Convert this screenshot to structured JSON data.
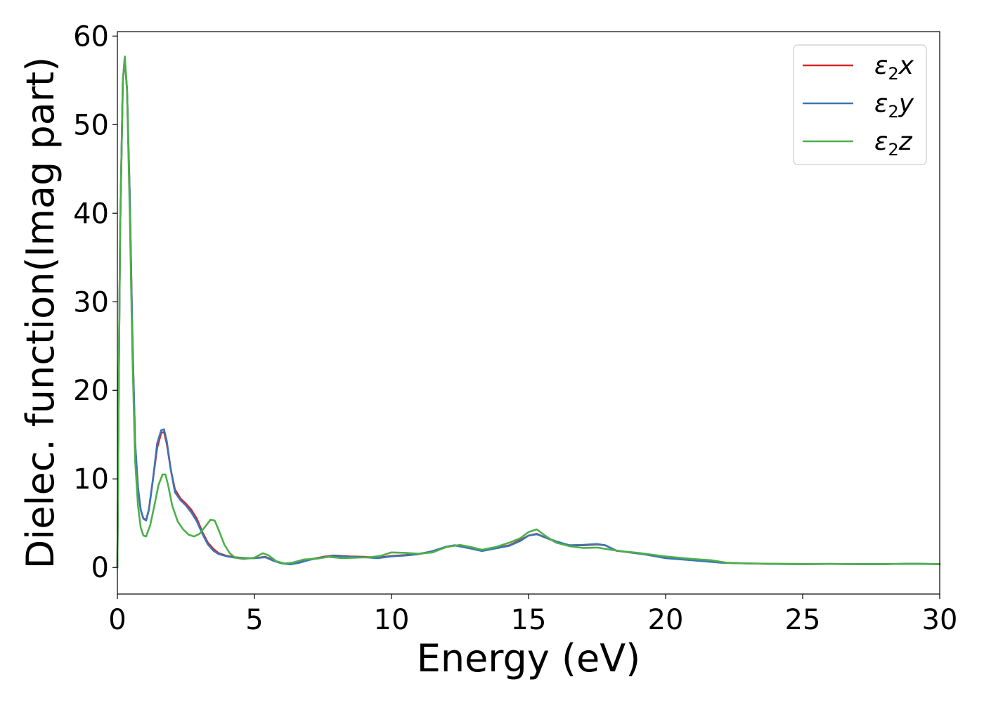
{
  "chart_data": {
    "type": "line",
    "title": "",
    "xlabel": "Energy (eV)",
    "ylabel": "Dielec. function(Imag part)",
    "xlim": [
      0,
      30
    ],
    "ylim": [
      -3,
      60.5
    ],
    "x_ticks": [
      0,
      5,
      10,
      15,
      20,
      25,
      30
    ],
    "y_ticks": [
      0,
      10,
      20,
      30,
      40,
      50,
      60
    ],
    "x_tick_labels": [
      "0",
      "5",
      "10",
      "15",
      "20",
      "25",
      "30"
    ],
    "y_tick_labels": [
      "0",
      "10",
      "20",
      "30",
      "40",
      "50",
      "60"
    ],
    "grid": false,
    "legend_position": "top-right",
    "legend": [
      {
        "base": "ε",
        "sub": "2",
        "axis": "x"
      },
      {
        "base": "ε",
        "sub": "2",
        "axis": "y"
      },
      {
        "base": "ε",
        "sub": "2",
        "axis": "z"
      }
    ],
    "series": [
      {
        "name": "ε2x",
        "color": "#d62728",
        "points": [
          [
            0,
            0
          ],
          [
            0.05,
            20
          ],
          [
            0.1,
            38
          ],
          [
            0.2,
            55
          ],
          [
            0.27,
            57.3
          ],
          [
            0.35,
            54
          ],
          [
            0.45,
            42
          ],
          [
            0.55,
            26
          ],
          [
            0.65,
            14
          ],
          [
            0.75,
            9
          ],
          [
            0.85,
            6.5
          ],
          [
            0.95,
            5.5
          ],
          [
            1.05,
            5.4
          ],
          [
            1.15,
            6.5
          ],
          [
            1.3,
            10
          ],
          [
            1.45,
            13.5
          ],
          [
            1.6,
            15.2
          ],
          [
            1.7,
            15.3
          ],
          [
            1.8,
            14
          ],
          [
            1.95,
            11
          ],
          [
            2.1,
            8.8
          ],
          [
            2.3,
            7.8
          ],
          [
            2.5,
            7.2
          ],
          [
            2.7,
            6.5
          ],
          [
            2.9,
            5.5
          ],
          [
            3.1,
            4
          ],
          [
            3.3,
            2.8
          ],
          [
            3.5,
            2.1
          ],
          [
            3.7,
            1.6
          ],
          [
            4.0,
            1.3
          ],
          [
            4.3,
            1.15
          ],
          [
            4.7,
            1.05
          ],
          [
            5.0,
            1.05
          ],
          [
            5.4,
            1.2
          ],
          [
            5.7,
            0.8
          ],
          [
            6.0,
            0.5
          ],
          [
            6.3,
            0.4
          ],
          [
            6.6,
            0.55
          ],
          [
            7.0,
            0.9
          ],
          [
            7.5,
            1.2
          ],
          [
            7.9,
            1.35
          ],
          [
            8.5,
            1.25
          ],
          [
            9.0,
            1.2
          ],
          [
            9.5,
            1.1
          ],
          [
            10.0,
            1.3
          ],
          [
            10.5,
            1.4
          ],
          [
            11.0,
            1.55
          ],
          [
            11.5,
            1.8
          ],
          [
            12.0,
            2.3
          ],
          [
            12.3,
            2.5
          ],
          [
            12.8,
            2.2
          ],
          [
            13.3,
            1.9
          ],
          [
            13.8,
            2.2
          ],
          [
            14.3,
            2.5
          ],
          [
            14.7,
            3.1
          ],
          [
            15.0,
            3.6
          ],
          [
            15.3,
            3.8
          ],
          [
            15.6,
            3.4
          ],
          [
            16.0,
            2.9
          ],
          [
            16.5,
            2.5
          ],
          [
            17.0,
            2.5
          ],
          [
            17.5,
            2.6
          ],
          [
            17.8,
            2.5
          ],
          [
            18.2,
            1.9
          ],
          [
            18.7,
            1.7
          ],
          [
            19.2,
            1.5
          ],
          [
            20.0,
            1.1
          ],
          [
            21.0,
            0.85
          ],
          [
            22.0,
            0.55
          ],
          [
            23.0,
            0.45
          ],
          [
            24.0,
            0.4
          ],
          [
            25.0,
            0.38
          ],
          [
            26.0,
            0.4
          ],
          [
            27.0,
            0.37
          ],
          [
            28.0,
            0.38
          ],
          [
            29.0,
            0.42
          ],
          [
            30.0,
            0.38
          ]
        ]
      },
      {
        "name": "ε2y",
        "color": "#3a76b5",
        "points": [
          [
            0,
            0
          ],
          [
            0.05,
            20
          ],
          [
            0.1,
            38
          ],
          [
            0.2,
            55
          ],
          [
            0.27,
            57.5
          ],
          [
            0.35,
            54
          ],
          [
            0.45,
            42
          ],
          [
            0.55,
            26
          ],
          [
            0.65,
            14
          ],
          [
            0.75,
            9
          ],
          [
            0.85,
            6.5
          ],
          [
            0.95,
            5.5
          ],
          [
            1.05,
            5.3
          ],
          [
            1.15,
            6.5
          ],
          [
            1.3,
            10
          ],
          [
            1.45,
            14
          ],
          [
            1.6,
            15.5
          ],
          [
            1.7,
            15.6
          ],
          [
            1.8,
            14.3
          ],
          [
            1.95,
            11
          ],
          [
            2.1,
            8.5
          ],
          [
            2.3,
            7.6
          ],
          [
            2.5,
            7.0
          ],
          [
            2.7,
            6.2
          ],
          [
            2.9,
            5.2
          ],
          [
            3.1,
            3.8
          ],
          [
            3.3,
            2.6
          ],
          [
            3.5,
            1.9
          ],
          [
            3.7,
            1.5
          ],
          [
            4.0,
            1.25
          ],
          [
            4.3,
            1.1
          ],
          [
            4.7,
            1.05
          ],
          [
            5.0,
            1.05
          ],
          [
            5.4,
            1.15
          ],
          [
            5.7,
            0.75
          ],
          [
            6.0,
            0.45
          ],
          [
            6.3,
            0.35
          ],
          [
            6.6,
            0.5
          ],
          [
            7.0,
            0.85
          ],
          [
            7.5,
            1.15
          ],
          [
            7.9,
            1.3
          ],
          [
            8.5,
            1.2
          ],
          [
            9.0,
            1.15
          ],
          [
            9.5,
            1.05
          ],
          [
            10.0,
            1.25
          ],
          [
            10.5,
            1.35
          ],
          [
            11.0,
            1.5
          ],
          [
            11.5,
            1.85
          ],
          [
            12.0,
            2.35
          ],
          [
            12.3,
            2.5
          ],
          [
            12.8,
            2.2
          ],
          [
            13.3,
            1.85
          ],
          [
            13.8,
            2.15
          ],
          [
            14.3,
            2.45
          ],
          [
            14.7,
            3.0
          ],
          [
            15.0,
            3.6
          ],
          [
            15.3,
            3.75
          ],
          [
            15.6,
            3.4
          ],
          [
            16.0,
            2.95
          ],
          [
            16.5,
            2.5
          ],
          [
            17.0,
            2.55
          ],
          [
            17.5,
            2.65
          ],
          [
            17.8,
            2.5
          ],
          [
            18.2,
            1.9
          ],
          [
            18.7,
            1.7
          ],
          [
            19.2,
            1.5
          ],
          [
            20.0,
            1.05
          ],
          [
            21.0,
            0.8
          ],
          [
            22.0,
            0.55
          ],
          [
            23.0,
            0.45
          ],
          [
            24.0,
            0.4
          ],
          [
            25.0,
            0.38
          ],
          [
            26.0,
            0.4
          ],
          [
            27.0,
            0.37
          ],
          [
            28.0,
            0.38
          ],
          [
            29.0,
            0.42
          ],
          [
            30.0,
            0.38
          ]
        ]
      },
      {
        "name": "ε2z",
        "color": "#4daf4a",
        "points": [
          [
            0,
            0
          ],
          [
            0.05,
            20
          ],
          [
            0.1,
            38
          ],
          [
            0.2,
            55
          ],
          [
            0.27,
            57.7
          ],
          [
            0.35,
            54
          ],
          [
            0.45,
            40
          ],
          [
            0.55,
            24
          ],
          [
            0.65,
            12
          ],
          [
            0.75,
            7
          ],
          [
            0.85,
            4.5
          ],
          [
            0.95,
            3.6
          ],
          [
            1.05,
            3.5
          ],
          [
            1.2,
            4.8
          ],
          [
            1.35,
            7
          ],
          [
            1.5,
            9.3
          ],
          [
            1.65,
            10.5
          ],
          [
            1.75,
            10.5
          ],
          [
            1.85,
            9.3
          ],
          [
            2.0,
            7
          ],
          [
            2.2,
            5.2
          ],
          [
            2.4,
            4.3
          ],
          [
            2.6,
            3.7
          ],
          [
            2.8,
            3.5
          ],
          [
            3.0,
            3.8
          ],
          [
            3.2,
            4.6
          ],
          [
            3.4,
            5.4
          ],
          [
            3.55,
            5.3
          ],
          [
            3.7,
            4.2
          ],
          [
            3.9,
            2.6
          ],
          [
            4.1,
            1.6
          ],
          [
            4.3,
            1.1
          ],
          [
            4.6,
            0.95
          ],
          [
            5.0,
            1.1
          ],
          [
            5.3,
            1.6
          ],
          [
            5.5,
            1.4
          ],
          [
            5.8,
            0.7
          ],
          [
            6.1,
            0.45
          ],
          [
            6.4,
            0.55
          ],
          [
            6.8,
            0.9
          ],
          [
            7.3,
            1.0
          ],
          [
            7.7,
            1.2
          ],
          [
            8.2,
            1.05
          ],
          [
            8.7,
            1.1
          ],
          [
            9.2,
            1.15
          ],
          [
            9.6,
            1.3
          ],
          [
            10.0,
            1.7
          ],
          [
            10.5,
            1.65
          ],
          [
            11.0,
            1.55
          ],
          [
            11.5,
            1.7
          ],
          [
            12.0,
            2.3
          ],
          [
            12.5,
            2.55
          ],
          [
            12.9,
            2.3
          ],
          [
            13.3,
            2.0
          ],
          [
            13.8,
            2.3
          ],
          [
            14.3,
            2.8
          ],
          [
            14.7,
            3.3
          ],
          [
            15.0,
            4.0
          ],
          [
            15.3,
            4.3
          ],
          [
            15.6,
            3.6
          ],
          [
            16.0,
            2.8
          ],
          [
            16.5,
            2.4
          ],
          [
            17.0,
            2.2
          ],
          [
            17.5,
            2.25
          ],
          [
            18.0,
            2.0
          ],
          [
            18.5,
            1.8
          ],
          [
            19.0,
            1.65
          ],
          [
            20.0,
            1.25
          ],
          [
            21.0,
            0.95
          ],
          [
            21.7,
            0.8
          ],
          [
            22.3,
            0.5
          ],
          [
            23.0,
            0.45
          ],
          [
            24.0,
            0.42
          ],
          [
            25.0,
            0.4
          ],
          [
            26.0,
            0.4
          ],
          [
            27.0,
            0.38
          ],
          [
            28.0,
            0.38
          ],
          [
            29.0,
            0.42
          ],
          [
            30.0,
            0.38
          ]
        ]
      }
    ]
  }
}
